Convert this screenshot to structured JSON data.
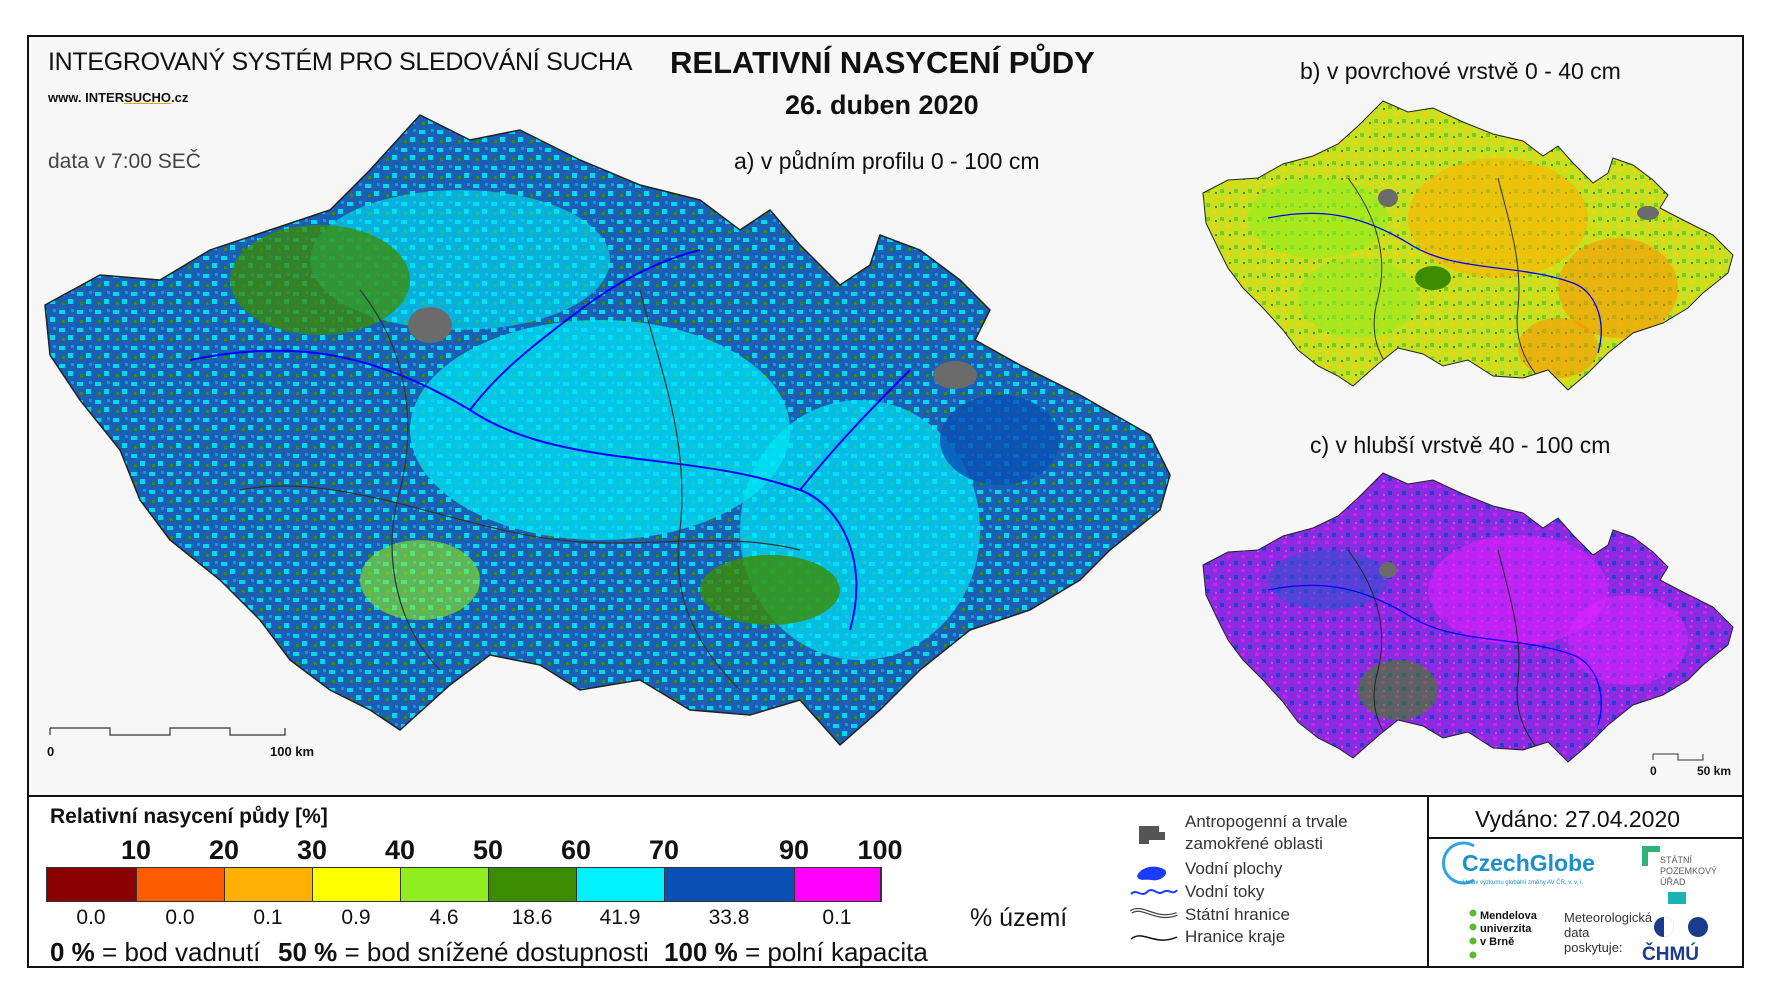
{
  "header": {
    "system_title": "INTEGROVANÝ SYSTÉM PRO SLEDOVÁNÍ SUCHA",
    "website_prefix": "www. INTER",
    "website_brand": "SUCHO",
    "website_suffix": ".cz",
    "data_time": "data v 7:00 SEČ",
    "title": "RELATIVNÍ NASYCENÍ PŮDY",
    "date": "26. duben 2020"
  },
  "maps": {
    "a": {
      "label": "a) v půdním profilu 0 - 100 cm",
      "scale_start": "0",
      "scale_end": "100 km",
      "dominant_color": "#1a5fb4"
    },
    "b": {
      "label": "b) v povrchové vrstvě 0 - 40 cm",
      "dominant_color": "#c8e020"
    },
    "c": {
      "label": "c) v hlubší vrstvě 40 - 100 cm",
      "scale_start": "0",
      "scale_end": "50 km",
      "dominant_color": "#8b2be2"
    }
  },
  "legend": {
    "title": "Relativní nasycení půdy [%]",
    "thresholds": [
      "10",
      "20",
      "30",
      "40",
      "50",
      "60",
      "70",
      "90",
      "100"
    ],
    "classes": [
      {
        "color": "#8b0000",
        "share": "0.0",
        "share_value": 0.0
      },
      {
        "color": "#ff5a00",
        "share": "0.0",
        "share_value": 0.0
      },
      {
        "color": "#ffb000",
        "share": "0.1",
        "share_value": 0.1
      },
      {
        "color": "#ffff00",
        "share": "0.9",
        "share_value": 0.9
      },
      {
        "color": "#90ee20",
        "share": "4.6",
        "share_value": 4.6
      },
      {
        "color": "#3c8c00",
        "share": "18.6",
        "share_value": 18.6
      },
      {
        "color": "#00f0ff",
        "share": "41.9",
        "share_value": 41.9
      },
      {
        "color": "#0a50b4",
        "share": "33.8",
        "share_value": 33.8
      },
      {
        "color": "#ff00ff",
        "share": "0.1",
        "share_value": 0.1
      }
    ],
    "share_unit": "% území",
    "def_0_value": "0 %",
    "def_0_text": " = bod vadnutí",
    "def_50_value": "50 %",
    "def_50_text": " = bod snížené dostupnosti",
    "def_100_value": "100 %",
    "def_100_text": " = polní kapacita"
  },
  "symbols": {
    "anthropogenic_line1": "Antropogenní a trvale",
    "anthropogenic_line2": "zamokřené oblasti",
    "water_areas": "Vodní plochy",
    "rivers": "Vodní toky",
    "state_border": "Státní hranice",
    "region_border": "Hranice kraje"
  },
  "issued": "Vydáno: 27.04.2020",
  "logos": {
    "czechglobe": "CzechGlobe",
    "czechglobe_sub": "Ústav výzkumu globální změny AV ČR, v. v. i.",
    "mendel_1": "Mendelova",
    "mendel_2": "univerzita",
    "mendel_3": "v Brně",
    "spu_1": "STÁTNÍ",
    "spu_2": "POZEMKOVÝ",
    "spu_3": "ÚŘAD",
    "meteo_1": "Meteorologická",
    "meteo_2": "data",
    "meteo_3": "poskytuje:",
    "chmu": "ČHMÚ"
  }
}
